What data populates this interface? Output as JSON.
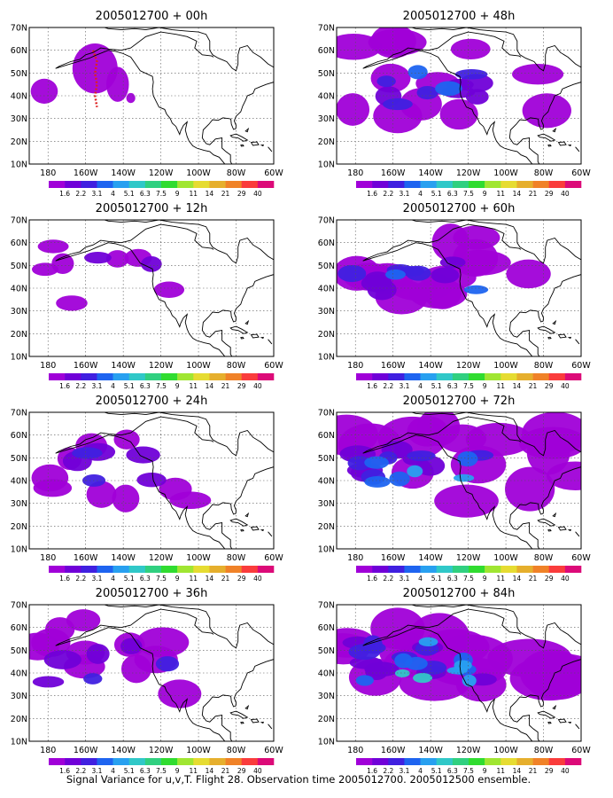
{
  "caption": "Signal Variance for u,v,T. Flight 28. Observation time 2005012700. 2005012500 ensemble.",
  "panels": [
    {
      "title": "2005012700 + 00h",
      "intensity": 0.0
    },
    {
      "title": "2005012700 + 12h",
      "intensity": 0.12
    },
    {
      "title": "2005012700 + 24h",
      "intensity": 0.25
    },
    {
      "title": "2005012700 + 36h",
      "intensity": 0.4
    },
    {
      "title": "2005012700 + 48h",
      "intensity": 0.48
    },
    {
      "title": "2005012700 + 60h",
      "intensity": 0.58
    },
    {
      "title": "2005012700 + 72h",
      "intensity": 0.72
    },
    {
      "title": "2005012700 + 84h",
      "intensity": 0.9
    }
  ],
  "axes": {
    "lon_range": [
      170,
      300
    ],
    "lat_range": [
      10,
      70
    ],
    "x_ticks": [
      {
        "lon": 180,
        "label": "180"
      },
      {
        "lon": 200,
        "label": "160W"
      },
      {
        "lon": 220,
        "label": "140W"
      },
      {
        "lon": 240,
        "label": "120W"
      },
      {
        "lon": 260,
        "label": "100W"
      },
      {
        "lon": 280,
        "label": "80W"
      },
      {
        "lon": 300,
        "label": "60W"
      }
    ],
    "y_ticks": [
      {
        "lat": 10,
        "label": "10N"
      },
      {
        "lat": 20,
        "label": "20N"
      },
      {
        "lat": 30,
        "label": "30N"
      },
      {
        "lat": 40,
        "label": "40N"
      },
      {
        "lat": 50,
        "label": "50N"
      },
      {
        "lat": 60,
        "label": "60N"
      },
      {
        "lat": 70,
        "label": "70N"
      }
    ],
    "grid": true
  },
  "colorbar": {
    "labels": [
      "1.6",
      "2.2",
      "3.1",
      "4",
      "5.1",
      "6.3",
      "7.5",
      "9",
      "11",
      "14",
      "21",
      "29",
      "40"
    ],
    "colors": [
      "#a000d8",
      "#7000d8",
      "#4020e0",
      "#1e64f0",
      "#28a0f0",
      "#30c8c8",
      "#30d080",
      "#30dc30",
      "#a0e632",
      "#e6dc32",
      "#e6af2d",
      "#f08228",
      "#fa3c3c",
      "#dc0a78"
    ]
  }
}
